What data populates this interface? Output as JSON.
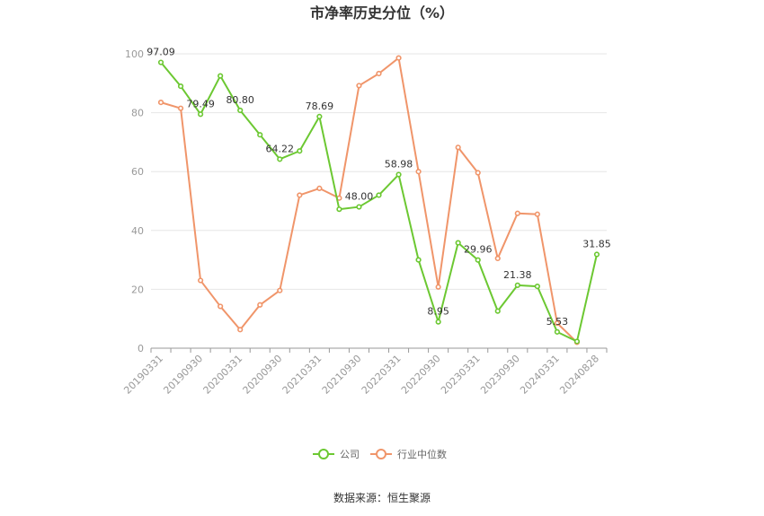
{
  "chart_data": {
    "type": "line",
    "title": "市净率历史分位（%）",
    "source": "数据来源：恒生聚源",
    "ylim": [
      0,
      100
    ],
    "yticks": [
      0,
      20,
      40,
      60,
      80,
      100
    ],
    "grid": true,
    "legend_position": "bottom",
    "x": [
      "20190331",
      "20190630",
      "20190930",
      "20191231",
      "20200331",
      "20200630",
      "20200930",
      "20201231",
      "20210331",
      "20210630",
      "20210930",
      "20211231",
      "20220331",
      "20220630",
      "20220930",
      "20221231",
      "20230331",
      "20230630",
      "20230930",
      "20231231",
      "20240331",
      "20240630",
      "20240828"
    ],
    "xtick_labels": [
      "20190331",
      "20190930",
      "20200331",
      "20200930",
      "20210331",
      "20210930",
      "20220331",
      "20220930",
      "20230331",
      "20230930",
      "20240331",
      "20240828"
    ],
    "series": [
      {
        "name": "公司",
        "color": "#6cc832",
        "values": [
          97.09,
          89.0,
          79.49,
          92.5,
          80.8,
          72.5,
          64.22,
          67.0,
          78.69,
          47.2,
          48.0,
          52.0,
          58.98,
          30.0,
          8.95,
          35.8,
          29.96,
          12.6,
          21.38,
          21.0,
          5.53,
          2.3,
          31.85
        ],
        "labels": {
          "0": "97.09",
          "2": "79.49",
          "4": "80.80",
          "6": "64.22",
          "8": "78.69",
          "10": "48.00",
          "12": "58.98",
          "14": "8.95",
          "16": "29.96",
          "18": "21.38",
          "20": "5.53",
          "22": "31.85"
        }
      },
      {
        "name": "行业中位数",
        "color": "#f0956a",
        "values": [
          83.5,
          81.5,
          23.0,
          14.2,
          6.3,
          14.7,
          19.6,
          52.0,
          54.3,
          51.0,
          89.2,
          93.3,
          98.6,
          60.0,
          20.8,
          68.2,
          59.6,
          30.5,
          45.8,
          45.5,
          8.5,
          2.0,
          null
        ]
      }
    ]
  }
}
